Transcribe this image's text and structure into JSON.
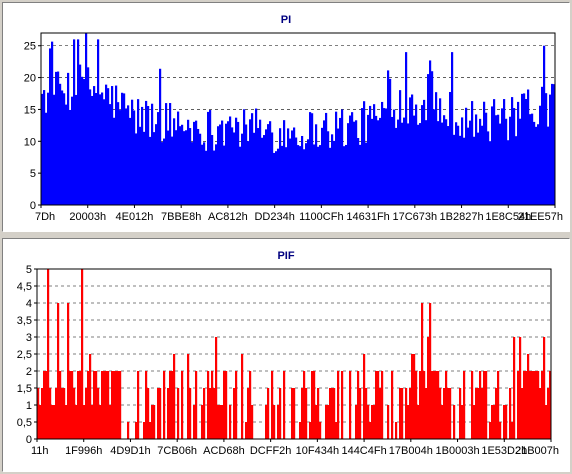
{
  "chart_data": [
    {
      "type": "bar",
      "title": "PI",
      "xlabel": "",
      "ylabel": "",
      "ylim": [
        0,
        27
      ],
      "y_ticks": [
        "0",
        "5",
        "10",
        "15",
        "20",
        "25"
      ],
      "x_tick_labels": [
        "7Dh",
        "20003h",
        "4E012h",
        "7BBE8h",
        "AC812h",
        "DD234h",
        "1100CFh",
        "14631Fh",
        "17C673h",
        "1B2827h",
        "1E8C54h",
        "21EE57h"
      ],
      "grid": "horizontal-dashed",
      "bar_color": "#0000ff",
      "profile": [
        [
          0,
          17
        ],
        [
          0.04,
          18
        ],
        [
          0.08,
          19
        ],
        [
          0.13,
          17
        ],
        [
          0.18,
          14
        ],
        [
          0.25,
          13
        ],
        [
          0.32,
          12
        ],
        [
          0.4,
          12
        ],
        [
          0.47,
          11.5
        ],
        [
          0.55,
          12
        ],
        [
          0.62,
          12.5
        ],
        [
          0.66,
          14
        ],
        [
          0.7,
          16
        ],
        [
          0.75,
          16
        ],
        [
          0.8,
          14.5
        ],
        [
          0.86,
          13
        ],
        [
          0.92,
          13.5
        ],
        [
          0.97,
          15
        ],
        [
          1,
          16
        ]
      ],
      "peaks": [
        [
          0.07,
          26
        ],
        [
          0.085,
          27
        ],
        [
          0.11,
          26
        ],
        [
          0.71,
          24
        ],
        [
          0.76,
          21
        ],
        [
          0.8,
          24
        ],
        [
          0.98,
          25
        ]
      ]
    },
    {
      "type": "bar",
      "title": "PIF",
      "xlabel": "",
      "ylabel": "",
      "ylim": [
        0,
        5
      ],
      "y_ticks": [
        "0",
        "0,5",
        "1",
        "1,5",
        "2",
        "2,5",
        "3",
        "3,5",
        "4",
        "4,5",
        "5"
      ],
      "x_tick_labels": [
        "11h",
        "1F996h",
        "4D9D1h",
        "7CB06h",
        "ACD68h",
        "DCFF2h",
        "10F434h",
        "144C4Fh",
        "17B004h",
        "1B0003h",
        "1E53D2h",
        "21B007h"
      ],
      "grid": "horizontal-dashed",
      "bar_color": "#ff0000",
      "peaks": [
        [
          0.02,
          5
        ],
        [
          0.085,
          5
        ],
        [
          0.04,
          4
        ],
        [
          0.06,
          4
        ],
        [
          0.75,
          4
        ],
        [
          0.765,
          4
        ],
        [
          0.99,
          3
        ]
      ]
    }
  ]
}
